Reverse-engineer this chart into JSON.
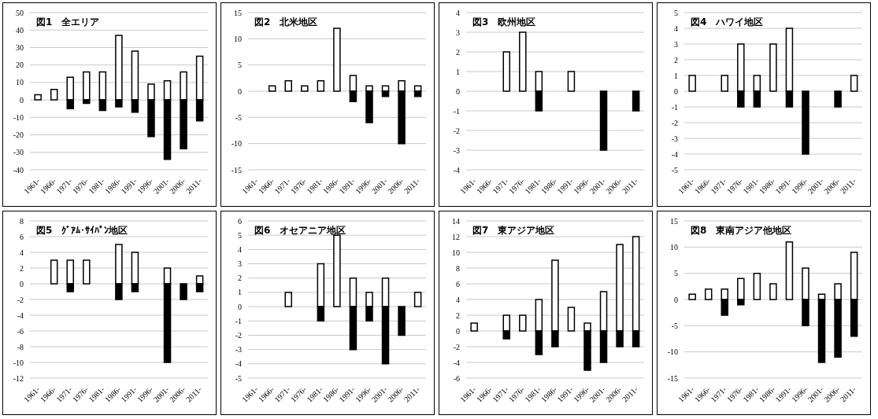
{
  "chart_data": [
    {
      "type": "bar",
      "title": "図1　全エリア",
      "categories": [
        "1961-",
        "1966-",
        "1971-",
        "1976-",
        "1981-",
        "1986-",
        "1991-",
        "1996-",
        "2001-",
        "2006-",
        "2011-"
      ],
      "stacked": true,
      "grid": "y",
      "ylim": [
        -40,
        50
      ],
      "yticks": [
        -40,
        -30,
        -20,
        -10,
        0,
        10,
        20,
        30,
        40,
        50
      ],
      "series": [
        {
          "color": "#ffffff",
          "values": [
            3,
            6,
            13,
            16,
            16,
            37,
            28,
            9,
            11,
            16,
            25
          ]
        },
        {
          "color": "#000000",
          "values": [
            null,
            null,
            -5,
            -2,
            -6,
            -4,
            -7,
            -21,
            -34,
            -28,
            -12
          ]
        }
      ]
    },
    {
      "type": "bar",
      "title": "図2　北米地区",
      "categories": [
        "1961-",
        "1966-",
        "1971-",
        "1976-",
        "1981-",
        "1986-",
        "1991-",
        "1996-",
        "2001-",
        "2006-",
        "2011-"
      ],
      "stacked": true,
      "grid": "y",
      "ylim": [
        -15,
        15
      ],
      "yticks": [
        -15,
        -10,
        -5,
        0,
        5,
        10,
        15
      ],
      "series": [
        {
          "color": "#ffffff",
          "values": [
            null,
            1,
            2,
            1,
            2,
            12,
            3,
            1,
            1,
            2,
            1
          ]
        },
        {
          "color": "#000000",
          "values": [
            null,
            null,
            null,
            null,
            null,
            null,
            -2,
            -6,
            -1,
            -10,
            -1
          ]
        }
      ]
    },
    {
      "type": "bar",
      "title": "図3　欧州地区",
      "categories": [
        "1961-",
        "1966-",
        "1971-",
        "1976-",
        "1981-",
        "1986-",
        "1991-",
        "1996-",
        "2001-",
        "2006-",
        "2011-"
      ],
      "stacked": true,
      "grid": "y",
      "ylim": [
        -4,
        4
      ],
      "yticks": [
        -4,
        -3,
        -2,
        -1,
        0,
        1,
        2,
        3,
        4
      ],
      "series": [
        {
          "color": "#ffffff",
          "values": [
            null,
            null,
            2,
            3,
            1,
            null,
            1,
            null,
            null,
            null,
            null
          ]
        },
        {
          "color": "#000000",
          "values": [
            null,
            null,
            null,
            null,
            -1,
            null,
            null,
            null,
            -3,
            null,
            -1
          ]
        }
      ]
    },
    {
      "type": "bar",
      "title": "図4　ハワイ地区",
      "categories": [
        "1961-",
        "1966-",
        "1971-",
        "1976-",
        "1981-",
        "1986-",
        "1991-",
        "1996-",
        "2001-",
        "2006-",
        "2011-"
      ],
      "stacked": true,
      "grid": "y",
      "ylim": [
        -5,
        5
      ],
      "yticks": [
        -5,
        -4,
        -3,
        -2,
        -1,
        0,
        1,
        2,
        3,
        4,
        5
      ],
      "series": [
        {
          "color": "#ffffff",
          "values": [
            1,
            null,
            1,
            3,
            1,
            3,
            4,
            null,
            null,
            null,
            1
          ]
        },
        {
          "color": "#000000",
          "values": [
            null,
            null,
            null,
            -1,
            -1,
            null,
            -1,
            -4,
            null,
            -1,
            null
          ]
        }
      ]
    },
    {
      "type": "bar",
      "title": "図5　ｸﾞｱﾑ･ｻｲﾊﾟﾝ地区",
      "categories": [
        "1961-",
        "1966-",
        "1971-",
        "1976-",
        "1981-",
        "1986-",
        "1991-",
        "1996-",
        "2001-",
        "2006-",
        "2011-"
      ],
      "stacked": true,
      "grid": "y",
      "ylim": [
        -12,
        8
      ],
      "yticks": [
        -12,
        -10,
        -8,
        -6,
        -4,
        -2,
        0,
        2,
        4,
        6,
        8
      ],
      "series": [
        {
          "color": "#ffffff",
          "values": [
            null,
            3,
            3,
            3,
            null,
            5,
            4,
            null,
            2,
            null,
            1
          ]
        },
        {
          "color": "#000000",
          "values": [
            null,
            null,
            -1,
            null,
            null,
            -2,
            -1,
            null,
            -10,
            -2,
            -1
          ]
        }
      ]
    },
    {
      "type": "bar",
      "title": "図6　オセアニア地区",
      "categories": [
        "1961-",
        "1966-",
        "1971-",
        "1976-",
        "1981-",
        "1986-",
        "1991-",
        "1996-",
        "2001-",
        "2006-",
        "2011-"
      ],
      "stacked": true,
      "grid": "y",
      "ylim": [
        -5,
        6
      ],
      "yticks": [
        -5,
        -4,
        -3,
        -2,
        -1,
        0,
        1,
        2,
        3,
        4,
        5,
        6
      ],
      "series": [
        {
          "color": "#ffffff",
          "values": [
            null,
            null,
            1,
            null,
            3,
            5,
            2,
            1,
            2,
            null,
            1
          ]
        },
        {
          "color": "#000000",
          "values": [
            null,
            null,
            null,
            null,
            -1,
            null,
            -3,
            -1,
            -4,
            -2,
            null
          ]
        }
      ]
    },
    {
      "type": "bar",
      "title": "図7　東アジア地区",
      "categories": [
        "1961-",
        "1966-",
        "1971-",
        "1976-",
        "1981-",
        "1986-",
        "1991-",
        "1996-",
        "2001-",
        "2006-",
        "2011-"
      ],
      "stacked": true,
      "grid": "y",
      "ylim": [
        -6,
        14
      ],
      "yticks": [
        -6,
        -4,
        -2,
        0,
        2,
        4,
        6,
        8,
        10,
        12,
        14
      ],
      "series": [
        {
          "color": "#ffffff",
          "values": [
            1,
            null,
            2,
            2,
            4,
            9,
            3,
            1,
            5,
            11,
            12
          ]
        },
        {
          "color": "#000000",
          "values": [
            null,
            null,
            -1,
            null,
            -3,
            -2,
            null,
            -5,
            -4,
            -2,
            -2
          ]
        }
      ]
    },
    {
      "type": "bar",
      "title": "図8　東南アジア他地区",
      "categories": [
        "1961-",
        "1966-",
        "1971-",
        "1976-",
        "1981-",
        "1986-",
        "1991-",
        "1996-",
        "2001-",
        "2006-",
        "2011-"
      ],
      "stacked": true,
      "grid": "y",
      "ylim": [
        -15,
        15
      ],
      "yticks": [
        -15,
        -10,
        -5,
        0,
        5,
        10,
        15
      ],
      "series": [
        {
          "color": "#ffffff",
          "values": [
            1,
            2,
            2,
            4,
            5,
            3,
            11,
            6,
            1,
            3,
            9
          ]
        },
        {
          "color": "#000000",
          "values": [
            null,
            null,
            -3,
            -1,
            null,
            null,
            null,
            -5,
            -12,
            -11,
            -7
          ]
        }
      ]
    }
  ]
}
